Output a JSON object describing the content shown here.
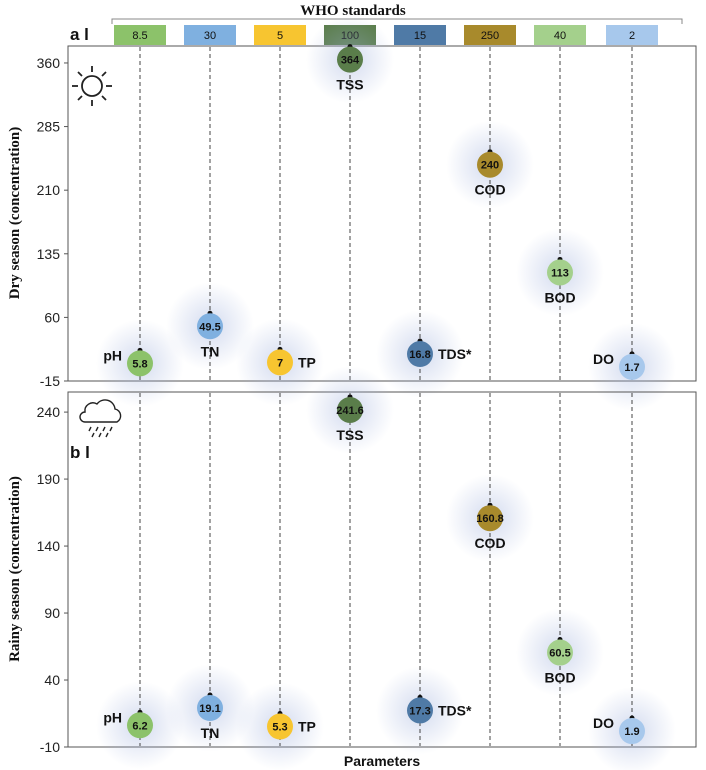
{
  "chart_data": {
    "type": "scatter",
    "header": "WHO standards",
    "x_label": "Parameters",
    "parameters": [
      "pH",
      "TN",
      "TP",
      "TSS",
      "TDS*",
      "COD",
      "BOD",
      "DO"
    ],
    "who_standards": [
      "8.5",
      "30",
      "5",
      "100",
      "15",
      "250",
      "40",
      "2"
    ],
    "colors": [
      "#8cc26a",
      "#7fb0e0",
      "#f7c530",
      "#5a7d4a",
      "#4f7aa6",
      "#a88a2c",
      "#a4d08c",
      "#a7c8ec"
    ],
    "panels": [
      {
        "tag": "a l",
        "icon": "sun-icon",
        "ylabel": "Dry season (concentration)",
        "ylim": [
          -15,
          380
        ],
        "yticks": [
          -15,
          60,
          135,
          210,
          285,
          360
        ],
        "values": [
          5.8,
          49.5,
          7,
          364,
          16.8,
          240,
          113,
          1.7
        ],
        "value_labels": [
          "5.8",
          "49.5",
          "7",
          "364",
          "16.8",
          "240",
          "113",
          "1.7"
        ]
      },
      {
        "tag": "b l",
        "icon": "rain-cloud-icon",
        "ylabel": "Rainy season (concentration)",
        "ylim": [
          -10,
          255
        ],
        "yticks": [
          -10,
          40,
          90,
          140,
          190,
          240
        ],
        "values": [
          6.2,
          19.1,
          5.3,
          241.6,
          17.3,
          160.8,
          60.5,
          1.9
        ],
        "value_labels": [
          "6.2",
          "19.1",
          "5.3",
          "241.6",
          "17.3",
          "160.8",
          "60.5",
          "1.9"
        ]
      }
    ]
  }
}
